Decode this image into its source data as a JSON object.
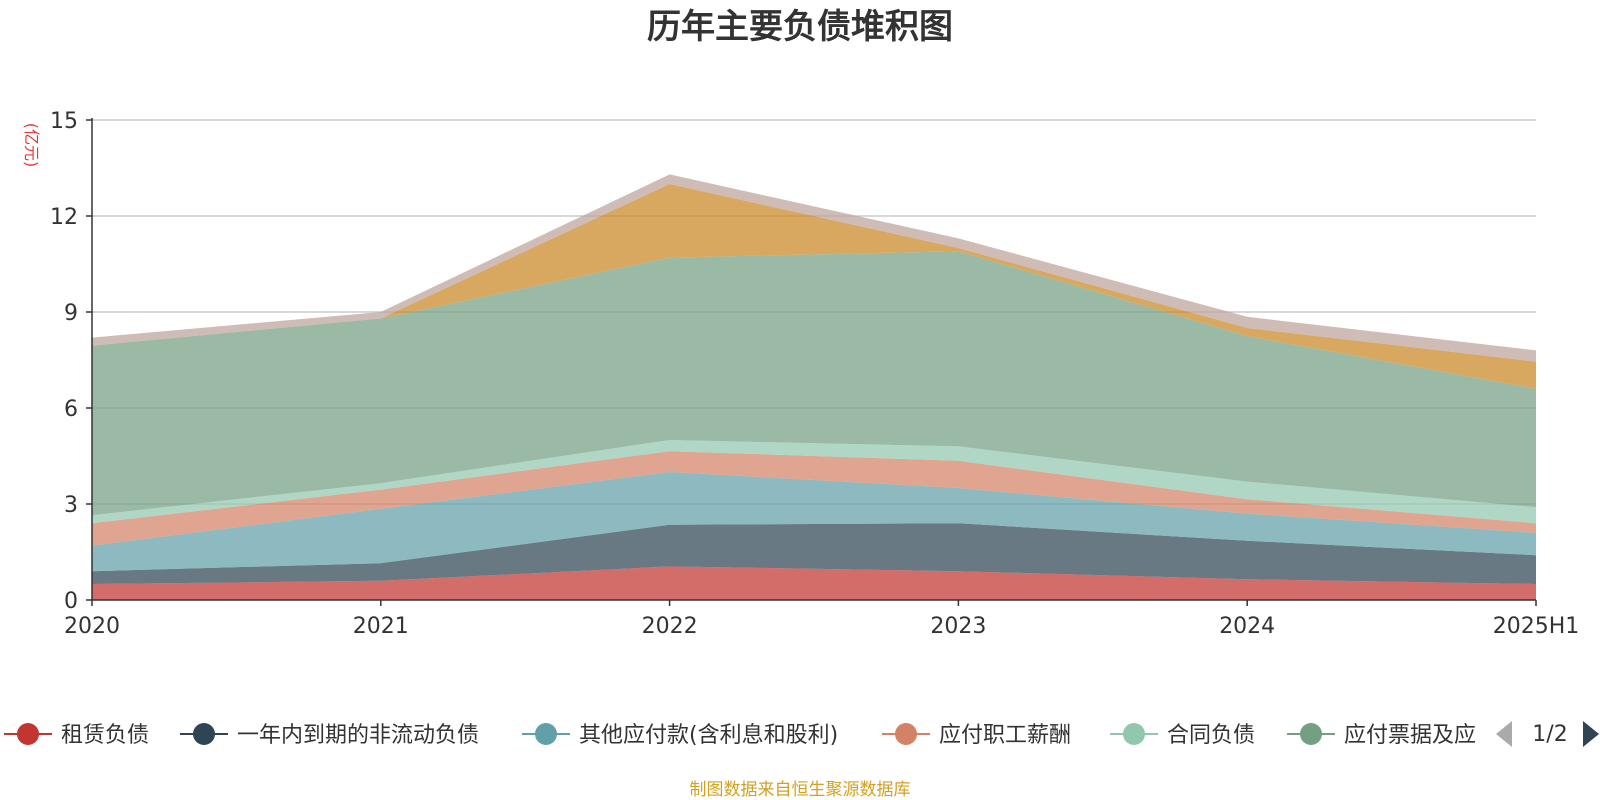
{
  "chart_data": {
    "type": "area",
    "stacked": true,
    "title": "历年主要负债堆积图",
    "unit_label": "(亿元)",
    "categories": [
      "2020",
      "2021",
      "2022",
      "2023",
      "2024",
      "2025H1"
    ],
    "ylim": [
      0,
      15
    ],
    "yticks": [
      "0",
      "3",
      "6",
      "9",
      "12",
      "15"
    ],
    "grid": true,
    "series": [
      {
        "name": "租赁负债",
        "color": "#c23531",
        "values": [
          0.5,
          0.6,
          1.05,
          0.9,
          0.65,
          0.5
        ]
      },
      {
        "name": "一年内到期的非流动负债",
        "color": "#2f4554",
        "values": [
          0.4,
          0.55,
          1.3,
          1.5,
          1.2,
          0.9
        ]
      },
      {
        "name": "其他应付款(含利息和股利)",
        "color": "#61a0a8",
        "values": [
          0.8,
          1.7,
          1.65,
          1.1,
          0.85,
          0.7
        ]
      },
      {
        "name": "应付职工薪酬",
        "color": "#d48265",
        "values": [
          0.7,
          0.6,
          0.65,
          0.85,
          0.45,
          0.3
        ]
      },
      {
        "name": "合同负债",
        "color": "#91c7ae",
        "values": [
          0.25,
          0.2,
          0.35,
          0.45,
          0.55,
          0.5
        ]
      },
      {
        "name": "应付票据及应付账款",
        "color": "#749f83",
        "values": [
          5.3,
          5.15,
          5.7,
          6.1,
          4.55,
          3.7
        ]
      },
      {
        "name": "",
        "color": "#ca8622",
        "values": [
          0.0,
          0.0,
          2.3,
          0.1,
          0.25,
          0.85
        ]
      },
      {
        "name": "",
        "color": "#bda29a",
        "values": [
          0.25,
          0.2,
          0.3,
          0.3,
          0.35,
          0.35
        ]
      }
    ],
    "legend": {
      "position": "bottom",
      "visible_items": [
        "租赁负债",
        "一年内到期的非流动负债",
        "其他应付款(含利息和股利)",
        "应付职工薪酬",
        "合同负债",
        "应付票据及应"
      ],
      "page": "1/2"
    }
  },
  "footer": {
    "source": "制图数据来自恒生聚源数据库"
  }
}
